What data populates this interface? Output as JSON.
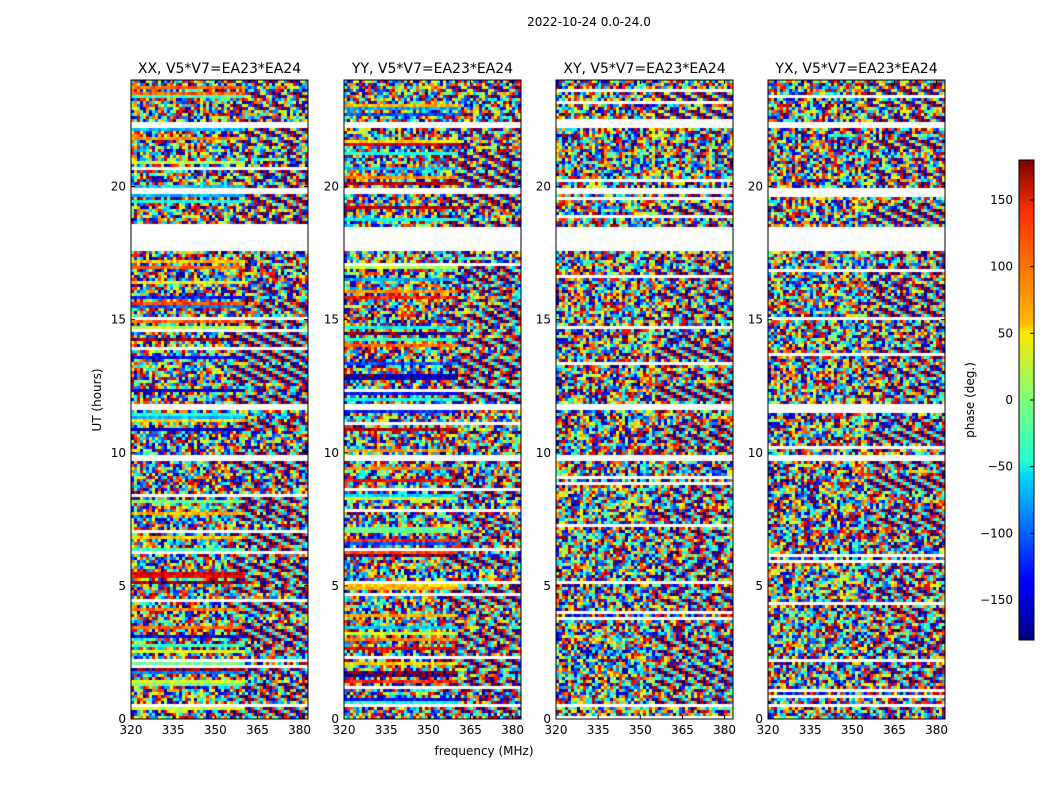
{
  "figure_title": "2022-10-24 0.0-24.0",
  "chart_data": {
    "type": "heatmap",
    "suptitle": "2022-10-24 0.0-24.0",
    "panels": [
      {
        "title": "XX, V5*V7=EA23*EA24",
        "polarization": "XX"
      },
      {
        "title": "YY, V5*V7=EA23*EA24",
        "polarization": "YY"
      },
      {
        "title": "XY, V5*V7=EA23*EA24",
        "polarization": "XY"
      },
      {
        "title": "YX, V5*V7=EA23*EA24",
        "polarization": "YX"
      }
    ],
    "xlabel": "frequency (MHz)",
    "ylabel": "UT (hours)",
    "xlim": [
      320,
      383
    ],
    "ylim": [
      0,
      24
    ],
    "xticks": [
      320,
      335,
      350,
      365,
      380
    ],
    "yticks": [
      0,
      5,
      10,
      15,
      20
    ],
    "colorbar": {
      "label": "phase (deg.)",
      "range": [
        -180,
        180
      ],
      "ticks": [
        -150,
        -100,
        -50,
        0,
        50,
        100,
        150
      ],
      "tick_labels": [
        "−150",
        "−100",
        "−50",
        "0",
        "50",
        "100",
        "150"
      ],
      "colormap": "jet"
    },
    "flagged_gaps_hours": [
      [
        0.5,
        0.55
      ],
      [
        9.75,
        9.9
      ],
      [
        11.7,
        11.8
      ],
      [
        17.6,
        18.4
      ],
      [
        19.8,
        19.9
      ],
      [
        22.2,
        22.35
      ]
    ]
  }
}
